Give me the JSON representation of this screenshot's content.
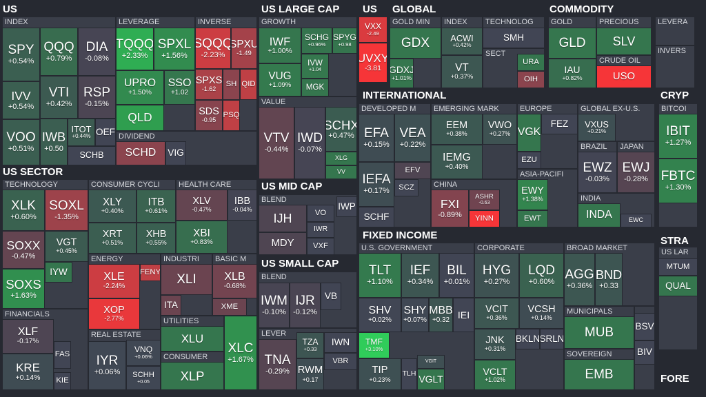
{
  "headers": [
    "US",
    "US SECTOR",
    "US LARGE CAP",
    "US MID CAP",
    "US SMALL CAP",
    "US",
    "GLOBAL",
    "COMMODITY",
    "INTERNATIONAL",
    "FIXED INCOME",
    "CRYP",
    "STRA",
    "FORE"
  ],
  "groups": [
    {
      "label": "INDEX",
      "tiles": [
        {
          "ticker": "SPY",
          "change": "+0.54%"
        },
        {
          "ticker": "QQQ",
          "change": "+0.79%"
        },
        {
          "ticker": "DIA",
          "change": "-0.08%"
        },
        {
          "ticker": "IVV",
          "change": "+0.54%"
        },
        {
          "ticker": "VTI",
          "change": "+0.42%"
        },
        {
          "ticker": "RSP",
          "change": "-0.15%"
        },
        {
          "ticker": "VOO",
          "change": "+0.51%"
        },
        {
          "ticker": "IWB",
          "change": "+0.50"
        },
        {
          "ticker": "ITOT",
          "change": "+0.44%"
        },
        {
          "ticker": "OEF",
          "color": "#414554"
        },
        {
          "ticker": "SCHB",
          "color": "#414554"
        }
      ]
    },
    {
      "label": "LEVERAGE",
      "tiles": [
        {
          "ticker": "TQQQ",
          "change": "+2.33%"
        },
        {
          "ticker": "SPXL",
          "change": "+1.56%"
        },
        {
          "ticker": "UPRO",
          "change": "+1.50%"
        },
        {
          "ticker": "SSO",
          "change": "+1.02"
        },
        {
          "ticker": "QLD",
          "color": "#2f9e4f"
        }
      ]
    },
    {
      "label": "INVERSE",
      "tiles": [
        {
          "ticker": "SQQQ",
          "change": "-2.23%"
        },
        {
          "ticker": "SPXU",
          "change": "-1.49"
        },
        {
          "ticker": "SPXS",
          "change": "-1.62"
        },
        {
          "ticker": "SH",
          "color": "#8b444e"
        },
        {
          "ticker": "QID",
          "color": "#bf4045"
        },
        {
          "ticker": "SDS",
          "change": "-0.95"
        },
        {
          "ticker": "PSQ",
          "color": "#bf4045"
        }
      ]
    },
    {
      "label": "DIVIDEND",
      "tiles": [
        {
          "ticker": "SCHD",
          "color": "#8b444e"
        },
        {
          "ticker": "VIG",
          "color": "#414554"
        }
      ]
    },
    {
      "label": "TECHNOLOGY",
      "tiles": [
        {
          "ticker": "XLK",
          "change": "+0.60%"
        },
        {
          "ticker": "SOXL",
          "change": "-1.35%"
        },
        {
          "ticker": "SOXX",
          "change": "-0.47%"
        },
        {
          "ticker": "VGT",
          "change": "+0.45%"
        },
        {
          "ticker": "SOXS",
          "change": "+1.63%"
        },
        {
          "ticker": "IYW",
          "color": "#35764e"
        }
      ]
    },
    {
      "label": "CONSUMER CYCLI",
      "tiles": [
        {
          "ticker": "XLY",
          "change": "+0.40%"
        },
        {
          "ticker": "ITB",
          "change": "+0.61%"
        },
        {
          "ticker": "XRT",
          "change": "+0.51%"
        },
        {
          "ticker": "XHB",
          "change": "+0.55%"
        }
      ]
    },
    {
      "label": "HEALTH CARE",
      "tiles": [
        {
          "ticker": "XLV",
          "change": "-0.47%"
        },
        {
          "ticker": "IBB",
          "change": "-0.04%"
        },
        {
          "ticker": "XBI",
          "change": "+0.83%"
        }
      ]
    },
    {
      "label": "ENERGY",
      "tiles": [
        {
          "ticker": "XLE",
          "change": "-2.24%"
        },
        {
          "ticker": "FENY",
          "color": "#bf4045"
        },
        {
          "ticker": "XOP",
          "change": "-2.77%"
        }
      ]
    },
    {
      "label": "INDUSTRI",
      "tiles": [
        {
          "ticker": "XLI",
          "color": "#6b4450"
        },
        {
          "ticker": "ITA",
          "color": "#6b4450"
        }
      ]
    },
    {
      "label": "BASIC M",
      "tiles": [
        {
          "ticker": "XLB",
          "change": "-0.68%"
        },
        {
          "ticker": "XME",
          "color": "#6b4450"
        }
      ]
    },
    {
      "label": "FINANCIALS",
      "tiles": [
        {
          "ticker": "XLF",
          "change": "-0.17%"
        },
        {
          "ticker": "FAS",
          "color": "#414554"
        },
        {
          "ticker": "KRE",
          "change": "+0.14%"
        },
        {
          "ticker": "KIE",
          "color": "#414554"
        }
      ]
    },
    {
      "label": "REAL ESTATE",
      "tiles": [
        {
          "ticker": "IYR",
          "change": "+0.06%"
        },
        {
          "ticker": "VNQ",
          "change": "+0.06%"
        },
        {
          "ticker": "SCHH",
          "change": "+0.05"
        }
      ]
    },
    {
      "label": "UTILITIES",
      "tiles": [
        {
          "ticker": "XLU",
          "color": "#35764e"
        }
      ]
    },
    {
      "label": "CONSUMER",
      "tiles": [
        {
          "ticker": "XLP",
          "color": "#35764e"
        }
      ]
    },
    {
      "tiles": [
        {
          "ticker": "XLC",
          "change": "+1.67%"
        }
      ]
    },
    {
      "label": "GROWTH",
      "tiles": [
        {
          "ticker": "IWF",
          "change": "+1.00%"
        },
        {
          "ticker": "SCHG",
          "change": "+0.96%"
        },
        {
          "ticker": "SPYG",
          "change": "+0.98"
        },
        {
          "ticker": "VUG",
          "change": "+1.09%"
        },
        {
          "ticker": "IVW",
          "change": "+1.04"
        },
        {
          "ticker": "MGK",
          "color": "#35764e"
        }
      ]
    },
    {
      "label": "VALUE",
      "tiles": [
        {
          "ticker": "VTV",
          "change": "-0.44%"
        },
        {
          "ticker": "IWD",
          "change": "-0.07%"
        },
        {
          "ticker": "SCHX",
          "change": "+0.47%"
        },
        {
          "ticker": "XLG",
          "color": "#35764e"
        },
        {
          "ticker": "VV",
          "color": "#35764e"
        }
      ]
    },
    {
      "label": "BLEND",
      "tiles": [
        {
          "ticker": "IJH",
          "color": "#4f4552"
        },
        {
          "ticker": "VO",
          "color": "#414554"
        },
        {
          "ticker": "IWP",
          "color": "#414554"
        },
        {
          "ticker": "IWR",
          "color": "#414554"
        },
        {
          "ticker": "MDY",
          "color": "#4f4552"
        },
        {
          "ticker": "VXF",
          "color": "#414554"
        }
      ]
    },
    {
      "label": "BLEND",
      "tiles": [
        {
          "ticker": "IWM",
          "change": "-0.10%"
        },
        {
          "ticker": "IJR",
          "change": "-0.12%"
        },
        {
          "ticker": "VB",
          "color": "#414554"
        }
      ]
    },
    {
      "label": "LEVER",
      "tiles": [
        {
          "ticker": "TNA",
          "change": "-0.29%"
        },
        {
          "ticker": "TZA",
          "change": "+0.33"
        },
        {
          "ticker": "IWN",
          "color": "#414554"
        },
        {
          "ticker": "RWM",
          "change": "+0.17"
        },
        {
          "ticker": "VBR",
          "color": "#414554"
        }
      ]
    },
    {
      "tiles": [
        {
          "ticker": "VXX",
          "change": "-2.49"
        },
        {
          "ticker": "UVXY",
          "change": "-3.81"
        }
      ]
    },
    {
      "label": "GOLD MIN",
      "tiles": [
        {
          "ticker": "GDX",
          "color": "#35764e"
        },
        {
          "ticker": "GDXJ",
          "change": "+1.01%"
        }
      ]
    },
    {
      "label": "INDEX",
      "tiles": [
        {
          "ticker": "ACWI",
          "change": "+0.42%"
        },
        {
          "ticker": "VT",
          "change": "+0.37%"
        }
      ]
    },
    {
      "label": "TECHNOLOG",
      "tiles": [
        {
          "ticker": "SMH",
          "color": "#414554"
        }
      ]
    },
    {
      "label": "SECT",
      "tiles": [
        {
          "ticker": "URA",
          "color": "#35764e"
        },
        {
          "ticker": "OIH",
          "color": "#8b444e"
        }
      ]
    },
    {
      "label": "DEVELOPED M",
      "tiles": [
        {
          "ticker": "EFA",
          "change": "+0.15%"
        },
        {
          "ticker": "VEA",
          "change": "+0.22%"
        },
        {
          "ticker": "IEFA",
          "change": "+0.17%"
        },
        {
          "ticker": "EFV",
          "color": "#4f4552"
        },
        {
          "ticker": "SCZ",
          "color": "#414554"
        },
        {
          "ticker": "SCHF",
          "color": "#414554"
        }
      ]
    },
    {
      "label": "EMERGING MARK",
      "tiles": [
        {
          "ticker": "EEM",
          "change": "+0.38%"
        },
        {
          "ticker": "VWO",
          "change": "+0.27%"
        },
        {
          "ticker": "IEMG",
          "change": "+0.40%"
        }
      ]
    },
    {
      "label": "CHINA",
      "tiles": [
        {
          "ticker": "FXI",
          "change": "-0.89%"
        },
        {
          "ticker": "ASHR",
          "change": "-0.63"
        },
        {
          "ticker": "YINN",
          "color": "#f63538"
        }
      ]
    },
    {
      "label": "EUROPE",
      "tiles": [
        {
          "ticker": "VGK",
          "color": "#35764e"
        },
        {
          "ticker": "FEZ",
          "color": "#414554"
        },
        {
          "ticker": "EZU",
          "color": "#414554"
        }
      ]
    },
    {
      "label": "ASIA-PACIFI",
      "tiles": [
        {
          "ticker": "EWY",
          "change": "+1.38%"
        },
        {
          "ticker": "EWT",
          "color": "#35764e"
        }
      ]
    },
    {
      "label": "GLOBAL EX-U.S.",
      "tiles": [
        {
          "ticker": "VXUS",
          "change": "+0.21%"
        }
      ]
    },
    {
      "label": "BRAZIL",
      "tiles": [
        {
          "ticker": "EWZ",
          "change": "-0.03%"
        }
      ]
    },
    {
      "label": "JAPAN",
      "tiles": [
        {
          "ticker": "EWJ",
          "change": "-0.28%"
        }
      ]
    },
    {
      "label": "INDIA",
      "tiles": [
        {
          "ticker": "INDA",
          "color": "#35764e"
        },
        {
          "ticker": "EWC",
          "color": "#414554"
        }
      ]
    },
    {
      "label": "U.S. GOVERNMENT",
      "tiles": [
        {
          "ticker": "TLT",
          "change": "+1.10%"
        },
        {
          "ticker": "IEF",
          "change": "+0.34%"
        },
        {
          "ticker": "BIL",
          "change": "+0.01%"
        },
        {
          "ticker": "SHV",
          "change": "+0.02%"
        },
        {
          "ticker": "SHY",
          "change": "+0.07%"
        },
        {
          "ticker": "MBB",
          "change": "+0.32"
        },
        {
          "ticker": "IEI",
          "color": "#414554"
        },
        {
          "ticker": "TMF",
          "change": "+3.10%"
        },
        {
          "ticker": "VGIT",
          "change": "+0.20"
        },
        {
          "ticker": "TIP",
          "change": "+0.23%"
        },
        {
          "ticker": "TLH",
          "color": "#414554"
        },
        {
          "ticker": "VGLT",
          "color": "#35764e"
        }
      ]
    },
    {
      "label": "CORPORATE",
      "tiles": [
        {
          "ticker": "HYG",
          "change": "+0.27%"
        },
        {
          "ticker": "LQD",
          "change": "+0.60%"
        },
        {
          "ticker": "VCIT",
          "change": "+0.36%"
        },
        {
          "ticker": "VCSH",
          "change": "+0.14%"
        },
        {
          "ticker": "JNK",
          "change": "+0.31%"
        },
        {
          "ticker": "BKLN",
          "color": "#414554"
        },
        {
          "ticker": "SRLN",
          "color": "#414554"
        },
        {
          "ticker": "VCLT",
          "change": "+1.02%"
        }
      ]
    },
    {
      "label": "BROAD MARKET",
      "tiles": [
        {
          "ticker": "AGG",
          "change": "+0.36%"
        },
        {
          "ticker": "BND",
          "change": "+0.33"
        }
      ]
    },
    {
      "label": "MUNICIPALS",
      "tiles": [
        {
          "ticker": "MUB",
          "color": "#35764e"
        }
      ]
    },
    {
      "label": "SOVEREIGN",
      "tiles": [
        {
          "ticker": "EMB",
          "color": "#35764e"
        }
      ]
    },
    {
      "tiles": [
        {
          "ticker": "BSV",
          "color": "#414554"
        },
        {
          "ticker": "BIV",
          "color": "#414554"
        }
      ]
    },
    {
      "label": "GOLD",
      "tiles": [
        {
          "ticker": "GLD",
          "color": "#35764e"
        },
        {
          "ticker": "IAU",
          "change": "+0.82%"
        }
      ]
    },
    {
      "label": "PRECIOUS",
      "tiles": [
        {
          "ticker": "SLV",
          "color": "#35764e"
        }
      ]
    },
    {
      "label": "CRUDE OIL",
      "tiles": [
        {
          "ticker": "USO",
          "color": "#f63538"
        }
      ]
    },
    {
      "label": "LEVERA",
      "tiles": []
    },
    {
      "label": "INVERS",
      "tiles": []
    },
    {
      "label": "BITCOI",
      "tiles": [
        {
          "ticker": "IBIT",
          "change": "+1.27%"
        },
        {
          "ticker": "FBTC",
          "change": "+1.30%"
        }
      ]
    },
    {
      "label": "US LAR",
      "tiles": [
        {
          "ticker": "MTUM",
          "color": "#414554"
        },
        {
          "ticker": "QUAL",
          "color": "#35764e"
        }
      ]
    }
  ]
}
